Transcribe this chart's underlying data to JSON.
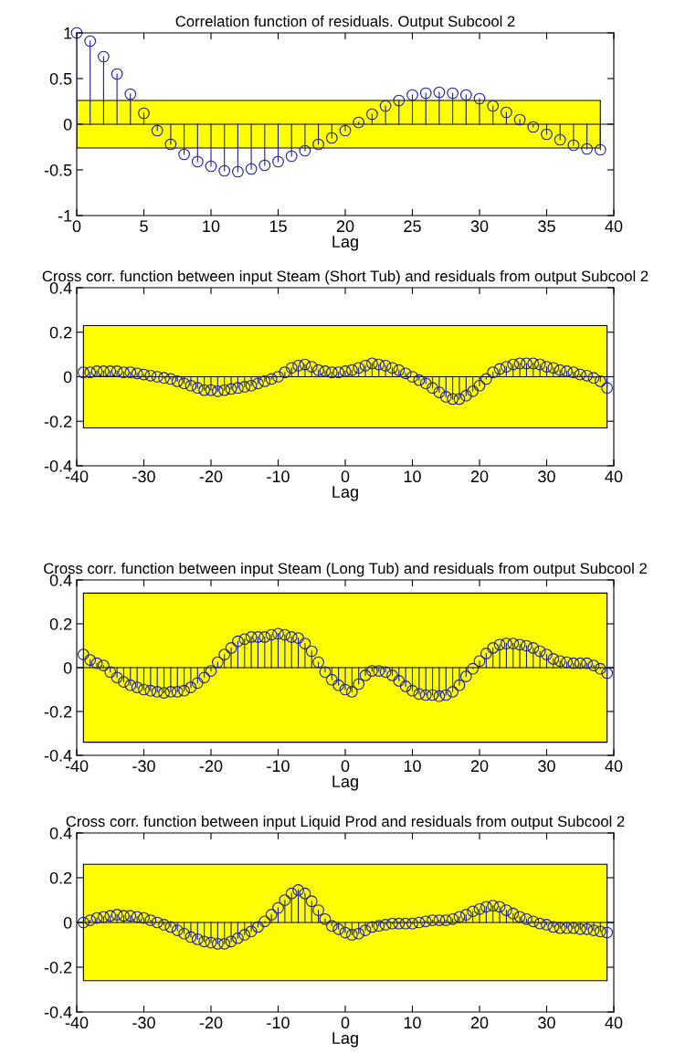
{
  "chart_data": [
    {
      "type": "lollipop",
      "title": "Correlation function of residuals. Output Subcool 2",
      "xlabel": "Lag",
      "marker": "circle",
      "grid": false,
      "xlim": [
        0,
        40
      ],
      "xticks": [
        0,
        5,
        10,
        15,
        20,
        25,
        30,
        35,
        40
      ],
      "ylim": [
        -1,
        1
      ],
      "yticks": [
        -1,
        -0.5,
        0,
        0.5,
        1
      ],
      "bands": [
        {
          "axis": "y",
          "from": -0.26,
          "to": 0.26,
          "color": "#ffff00"
        }
      ],
      "ref_lines": [
        {
          "axis": "y",
          "value": 0,
          "color": "#000000"
        }
      ],
      "series": [
        {
          "color": "#1f1f9a",
          "x": [
            0,
            1,
            2,
            3,
            4,
            5,
            6,
            7,
            8,
            9,
            10,
            11,
            12,
            13,
            14,
            15,
            16,
            17,
            18,
            19,
            20,
            21,
            22,
            23,
            24,
            25,
            26,
            27,
            28,
            29,
            30,
            31,
            32,
            33,
            34,
            35,
            36,
            37,
            38,
            39
          ],
          "values": [
            1.0,
            0.91,
            0.74,
            0.55,
            0.33,
            0.12,
            -0.07,
            -0.22,
            -0.33,
            -0.41,
            -0.46,
            -0.51,
            -0.52,
            -0.49,
            -0.45,
            -0.41,
            -0.35,
            -0.29,
            -0.22,
            -0.15,
            -0.07,
            0.02,
            0.11,
            0.2,
            0.26,
            0.32,
            0.34,
            0.35,
            0.34,
            0.32,
            0.28,
            0.2,
            0.13,
            0.05,
            -0.03,
            -0.11,
            -0.17,
            -0.23,
            -0.27,
            -0.28
          ]
        }
      ]
    },
    {
      "type": "lollipop",
      "title": "Cross corr. function between input Steam (Short Tub) and residuals from output Subcool 2",
      "xlabel": "Lag",
      "marker": "circle",
      "grid": false,
      "xlim": [
        -40,
        40
      ],
      "xticks": [
        -40,
        -30,
        -20,
        -10,
        0,
        10,
        20,
        30,
        40
      ],
      "ylim": [
        -0.4,
        0.4
      ],
      "yticks": [
        -0.4,
        -0.2,
        0,
        0.2,
        0.4
      ],
      "bands": [
        {
          "axis": "y",
          "from": -0.23,
          "to": 0.23,
          "color": "#ffff00"
        }
      ],
      "ref_lines": [
        {
          "axis": "y",
          "value": 0,
          "color": "#000000"
        }
      ],
      "series": [
        {
          "color": "#1f1f9a",
          "x": [
            -39,
            -38,
            -37,
            -36,
            -35,
            -34,
            -33,
            -32,
            -31,
            -30,
            -29,
            -28,
            -27,
            -26,
            -25,
            -24,
            -23,
            -22,
            -21,
            -20,
            -19,
            -18,
            -17,
            -16,
            -15,
            -14,
            -13,
            -12,
            -11,
            -10,
            -9,
            -8,
            -7,
            -6,
            -5,
            -4,
            -3,
            -2,
            -1,
            0,
            1,
            2,
            3,
            4,
            5,
            6,
            7,
            8,
            9,
            10,
            11,
            12,
            13,
            14,
            15,
            16,
            17,
            18,
            19,
            20,
            21,
            22,
            23,
            24,
            25,
            26,
            27,
            28,
            29,
            30,
            31,
            32,
            33,
            34,
            35,
            36,
            37,
            38,
            39
          ],
          "values": [
            0.02,
            0.02,
            0.025,
            0.025,
            0.025,
            0.025,
            0.02,
            0.02,
            0.015,
            0.01,
            0.005,
            0,
            -0.005,
            -0.01,
            -0.02,
            -0.03,
            -0.04,
            -0.05,
            -0.06,
            -0.06,
            -0.065,
            -0.06,
            -0.055,
            -0.05,
            -0.045,
            -0.04,
            -0.03,
            -0.02,
            -0.01,
            0.0,
            0.02,
            0.04,
            0.05,
            0.055,
            0.045,
            0.03,
            0.025,
            0.02,
            0.02,
            0.025,
            0.03,
            0.04,
            0.05,
            0.06,
            0.055,
            0.05,
            0.04,
            0.03,
            0.015,
            0.0,
            -0.015,
            -0.03,
            -0.05,
            -0.07,
            -0.09,
            -0.1,
            -0.1,
            -0.085,
            -0.065,
            -0.04,
            -0.01,
            0.02,
            0.035,
            0.045,
            0.055,
            0.06,
            0.06,
            0.06,
            0.055,
            0.045,
            0.04,
            0.03,
            0.025,
            0.02,
            0.01,
            0.005,
            -0.005,
            -0.02,
            -0.05
          ]
        }
      ]
    },
    {
      "type": "lollipop",
      "title": "Cross corr. function between input Steam (Long Tub) and residuals from output Subcool 2",
      "xlabel": "Lag",
      "marker": "circle",
      "grid": false,
      "xlim": [
        -40,
        40
      ],
      "xticks": [
        -40,
        -30,
        -20,
        -10,
        0,
        10,
        20,
        30,
        40
      ],
      "ylim": [
        -0.4,
        0.4
      ],
      "yticks": [
        -0.4,
        -0.2,
        0,
        0.2,
        0.4
      ],
      "bands": [
        {
          "axis": "y",
          "from": -0.34,
          "to": 0.34,
          "color": "#ffff00"
        }
      ],
      "ref_lines": [
        {
          "axis": "y",
          "value": 0,
          "color": "#000000"
        }
      ],
      "series": [
        {
          "color": "#1f1f9a",
          "x": [
            -39,
            -38,
            -37,
            -36,
            -35,
            -34,
            -33,
            -32,
            -31,
            -30,
            -29,
            -28,
            -27,
            -26,
            -25,
            -24,
            -23,
            -22,
            -21,
            -20,
            -19,
            -18,
            -17,
            -16,
            -15,
            -14,
            -13,
            -12,
            -11,
            -10,
            -9,
            -8,
            -7,
            -6,
            -5,
            -4,
            -3,
            -2,
            -1,
            0,
            1,
            2,
            3,
            4,
            5,
            6,
            7,
            8,
            9,
            10,
            11,
            12,
            13,
            14,
            15,
            16,
            17,
            18,
            19,
            20,
            21,
            22,
            23,
            24,
            25,
            26,
            27,
            28,
            29,
            30,
            31,
            32,
            33,
            34,
            35,
            36,
            37,
            38,
            39
          ],
          "values": [
            0.06,
            0.035,
            0.02,
            0.01,
            -0.02,
            -0.045,
            -0.065,
            -0.08,
            -0.09,
            -0.1,
            -0.105,
            -0.11,
            -0.115,
            -0.11,
            -0.11,
            -0.105,
            -0.09,
            -0.07,
            -0.045,
            -0.015,
            0.025,
            0.06,
            0.09,
            0.12,
            0.13,
            0.14,
            0.14,
            0.14,
            0.15,
            0.155,
            0.15,
            0.14,
            0.135,
            0.11,
            0.075,
            0.025,
            -0.02,
            -0.055,
            -0.08,
            -0.1,
            -0.11,
            -0.075,
            -0.035,
            -0.015,
            -0.015,
            -0.02,
            -0.035,
            -0.06,
            -0.085,
            -0.105,
            -0.12,
            -0.125,
            -0.125,
            -0.13,
            -0.125,
            -0.11,
            -0.08,
            -0.04,
            -0.005,
            0.03,
            0.065,
            0.09,
            0.105,
            0.11,
            0.11,
            0.105,
            0.1,
            0.09,
            0.075,
            0.06,
            0.04,
            0.03,
            0.025,
            0.02,
            0.02,
            0.02,
            0.01,
            -0.005,
            -0.025
          ]
        }
      ]
    },
    {
      "type": "lollipop",
      "title": "Cross corr. function between input Liquid Prod and residuals from output Subcool 2",
      "xlabel": "Lag",
      "marker": "circle",
      "grid": false,
      "xlim": [
        -40,
        40
      ],
      "xticks": [
        -40,
        -30,
        -20,
        -10,
        0,
        10,
        20,
        30,
        40
      ],
      "ylim": [
        -0.4,
        0.4
      ],
      "yticks": [
        -0.4,
        -0.2,
        0,
        0.2,
        0.4
      ],
      "bands": [
        {
          "axis": "y",
          "from": -0.26,
          "to": 0.26,
          "color": "#ffff00"
        }
      ],
      "ref_lines": [
        {
          "axis": "y",
          "value": 0,
          "color": "#000000"
        }
      ],
      "series": [
        {
          "color": "#1f1f9a",
          "x": [
            -39,
            -38,
            -37,
            -36,
            -35,
            -34,
            -33,
            -32,
            -31,
            -30,
            -29,
            -28,
            -27,
            -26,
            -25,
            -24,
            -23,
            -22,
            -21,
            -20,
            -19,
            -18,
            -17,
            -16,
            -15,
            -14,
            -13,
            -12,
            -11,
            -10,
            -9,
            -8,
            -7,
            -6,
            -5,
            -4,
            -3,
            -2,
            -1,
            0,
            1,
            2,
            3,
            4,
            5,
            6,
            7,
            8,
            9,
            10,
            11,
            12,
            13,
            14,
            15,
            16,
            17,
            18,
            19,
            20,
            21,
            22,
            23,
            24,
            25,
            26,
            27,
            28,
            29,
            30,
            31,
            32,
            33,
            34,
            35,
            36,
            37,
            38,
            39
          ],
          "values": [
            0.0,
            0.01,
            0.02,
            0.025,
            0.03,
            0.035,
            0.03,
            0.03,
            0.025,
            0.02,
            0.01,
            0.0,
            -0.01,
            -0.02,
            -0.035,
            -0.05,
            -0.065,
            -0.075,
            -0.085,
            -0.09,
            -0.095,
            -0.095,
            -0.085,
            -0.07,
            -0.055,
            -0.04,
            -0.02,
            0.005,
            0.035,
            0.065,
            0.1,
            0.13,
            0.145,
            0.13,
            0.095,
            0.055,
            0.015,
            -0.015,
            -0.03,
            -0.045,
            -0.055,
            -0.05,
            -0.035,
            -0.02,
            -0.015,
            -0.01,
            -0.005,
            -0.005,
            -0.005,
            -0.005,
            0.0,
            0.005,
            0.01,
            0.01,
            0.01,
            0.015,
            0.025,
            0.035,
            0.05,
            0.06,
            0.07,
            0.075,
            0.07,
            0.055,
            0.04,
            0.025,
            0.015,
            0.005,
            -0.005,
            -0.01,
            -0.02,
            -0.025,
            -0.025,
            -0.025,
            -0.03,
            -0.03,
            -0.035,
            -0.04,
            -0.045
          ]
        }
      ]
    }
  ]
}
